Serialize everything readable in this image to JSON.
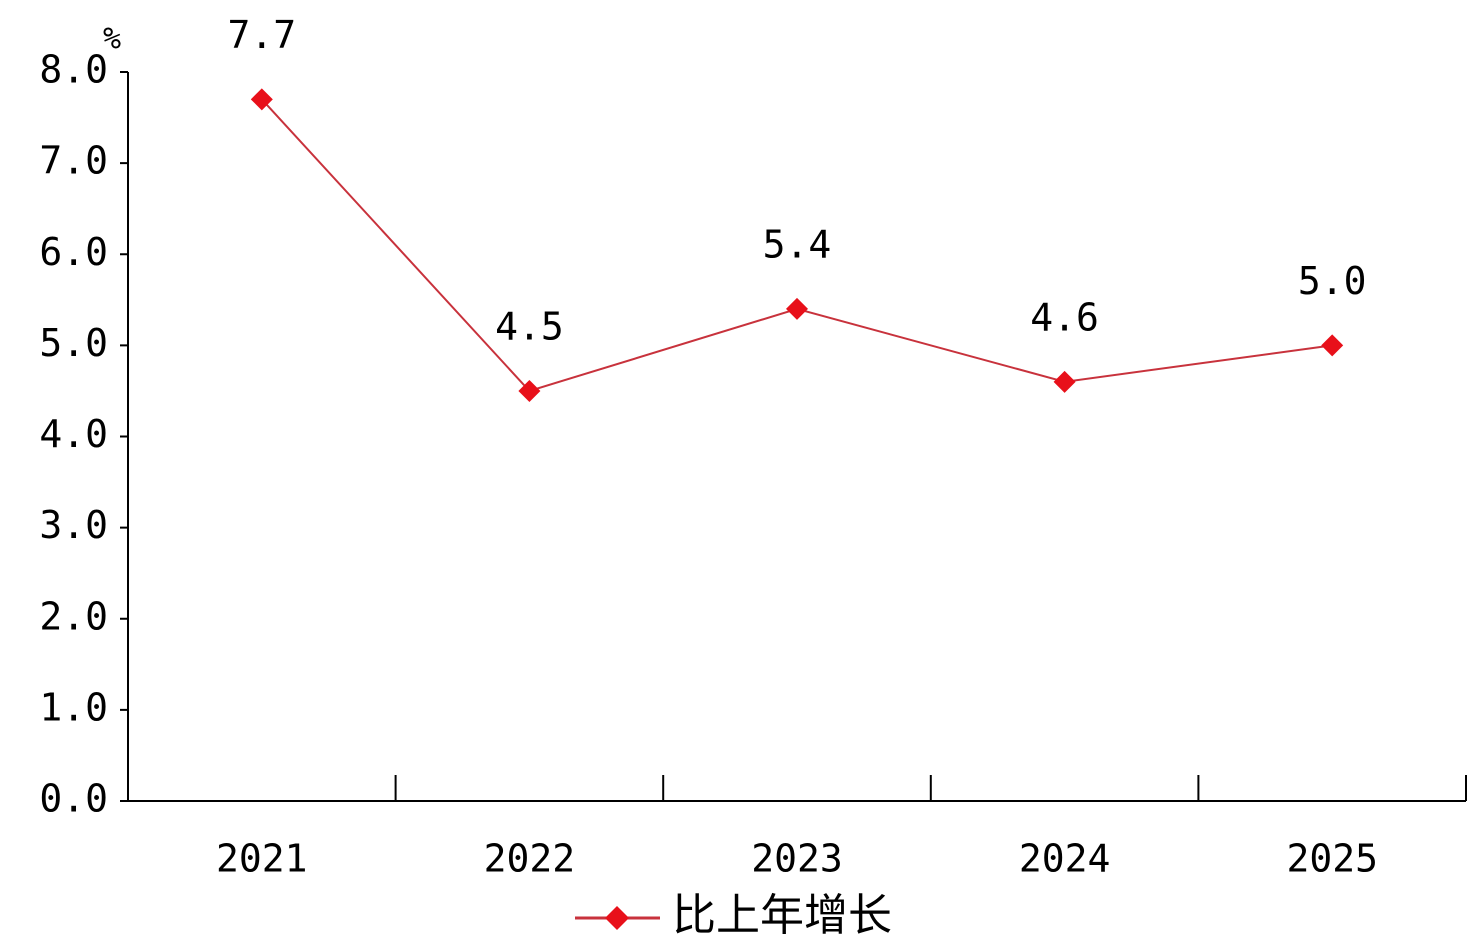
{
  "chart_data": {
    "type": "line",
    "y_label": "%",
    "categories": [
      "2021",
      "2022",
      "2023",
      "2024",
      "2025"
    ],
    "series": [
      {
        "name": "比上年增长",
        "color": "#e8101a",
        "line_color": "#c8323c",
        "values": [
          7.7,
          4.5,
          5.4,
          4.6,
          5.0
        ],
        "value_labels": [
          "7.7",
          "4.5",
          "5.4",
          "4.6",
          "5.0"
        ]
      }
    ],
    "ylim": [
      0,
      8
    ],
    "yticks": [
      {
        "value": 0,
        "label": "0.0"
      },
      {
        "value": 1,
        "label": "1.0"
      },
      {
        "value": 2,
        "label": "2.0"
      },
      {
        "value": 3,
        "label": "3.0"
      },
      {
        "value": 4,
        "label": "4.0"
      },
      {
        "value": 5,
        "label": "5.0"
      },
      {
        "value": 6,
        "label": "6.0"
      },
      {
        "value": 7,
        "label": "7.0"
      },
      {
        "value": 8,
        "label": "8.0"
      }
    ],
    "grid": false,
    "legend": "bottom"
  }
}
